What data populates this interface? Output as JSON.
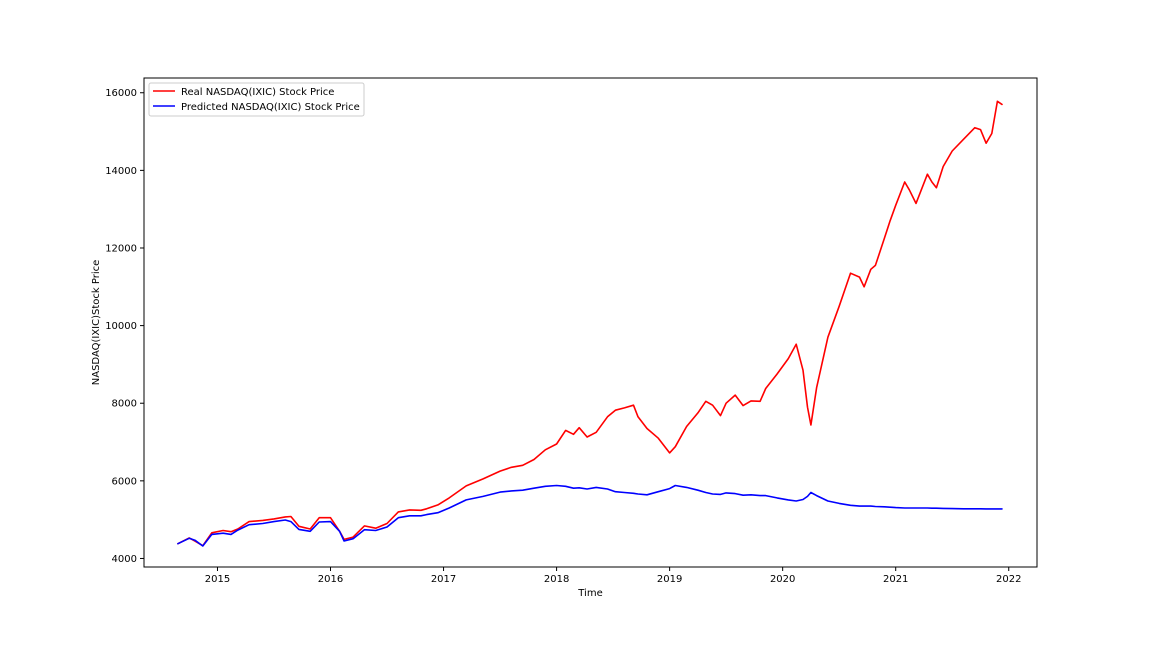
{
  "chart_data": {
    "type": "line",
    "title": "",
    "xlabel": "Time",
    "ylabel": "NASDAQ(IXIC)Stock Price",
    "xlim": [
      2014.35,
      2022.25
    ],
    "ylim": [
      3780,
      16380
    ],
    "x_ticks": [
      2015,
      2016,
      2017,
      2018,
      2019,
      2020,
      2021,
      2022
    ],
    "x_tick_labels": [
      "2015",
      "2016",
      "2017",
      "2018",
      "2019",
      "2020",
      "2021",
      "2022"
    ],
    "y_ticks": [
      4000,
      6000,
      8000,
      10000,
      12000,
      14000,
      16000
    ],
    "y_tick_labels": [
      "4000",
      "6000",
      "8000",
      "10000",
      "12000",
      "14000",
      "16000"
    ],
    "grid": false,
    "legend_position": "upper-left",
    "series": [
      {
        "name": "Real NASDAQ(IXIC) Stock Price",
        "color": "#ff0000",
        "x": [
          2014.65,
          2014.75,
          2014.8,
          2014.87,
          2014.95,
          2015.05,
          2015.12,
          2015.18,
          2015.28,
          2015.4,
          2015.5,
          2015.6,
          2015.65,
          2015.72,
          2015.82,
          2015.9,
          2016.0,
          2016.08,
          2016.12,
          2016.2,
          2016.3,
          2016.4,
          2016.5,
          2016.6,
          2016.7,
          2016.8,
          2016.85,
          2016.95,
          2017.05,
          2017.2,
          2017.35,
          2017.5,
          2017.6,
          2017.7,
          2017.8,
          2017.9,
          2018.0,
          2018.08,
          2018.15,
          2018.2,
          2018.27,
          2018.35,
          2018.45,
          2018.52,
          2018.6,
          2018.68,
          2018.72,
          2018.8,
          2018.9,
          2019.0,
          2019.05,
          2019.15,
          2019.25,
          2019.32,
          2019.38,
          2019.45,
          2019.5,
          2019.58,
          2019.65,
          2019.72,
          2019.8,
          2019.85,
          2019.95,
          2020.05,
          2020.12,
          2020.18,
          2020.22,
          2020.25,
          2020.3,
          2020.4,
          2020.5,
          2020.6,
          2020.68,
          2020.72,
          2020.78,
          2020.82,
          2020.9,
          2020.95,
          2021.0,
          2021.08,
          2021.12,
          2021.18,
          2021.22,
          2021.28,
          2021.32,
          2021.36,
          2021.42,
          2021.5,
          2021.6,
          2021.7,
          2021.75,
          2021.8,
          2021.85,
          2021.9,
          2021.94
        ],
        "y": [
          4380,
          4530,
          4450,
          4330,
          4660,
          4720,
          4690,
          4760,
          4950,
          4980,
          5020,
          5070,
          5080,
          4830,
          4760,
          5050,
          5050,
          4700,
          4490,
          4550,
          4840,
          4780,
          4900,
          5200,
          5250,
          5240,
          5280,
          5380,
          5560,
          5870,
          6050,
          6250,
          6350,
          6400,
          6550,
          6800,
          6950,
          7300,
          7200,
          7370,
          7130,
          7250,
          7650,
          7820,
          7880,
          7950,
          7650,
          7350,
          7100,
          6720,
          6880,
          7400,
          7750,
          8050,
          7950,
          7680,
          8000,
          8210,
          7940,
          8060,
          8050,
          8380,
          8750,
          9150,
          9520,
          8850,
          7900,
          7440,
          8400,
          9700,
          10500,
          11350,
          11250,
          11000,
          11450,
          11550,
          12250,
          12700,
          13100,
          13700,
          13500,
          13150,
          13450,
          13900,
          13700,
          13550,
          14100,
          14500,
          14800,
          15100,
          15050,
          14700,
          14950,
          15780,
          15700
        ]
      },
      {
        "name": "Predicted NASDAQ(IXIC) Stock Price",
        "color": "#0000ff",
        "x": [
          2014.65,
          2014.75,
          2014.8,
          2014.87,
          2014.95,
          2015.05,
          2015.12,
          2015.18,
          2015.28,
          2015.4,
          2015.5,
          2015.6,
          2015.65,
          2015.72,
          2015.82,
          2015.9,
          2016.0,
          2016.08,
          2016.12,
          2016.2,
          2016.3,
          2016.4,
          2016.5,
          2016.6,
          2016.7,
          2016.8,
          2016.85,
          2016.95,
          2017.05,
          2017.2,
          2017.35,
          2017.5,
          2017.6,
          2017.7,
          2017.8,
          2017.9,
          2018.0,
          2018.08,
          2018.15,
          2018.2,
          2018.27,
          2018.35,
          2018.45,
          2018.52,
          2018.6,
          2018.68,
          2018.72,
          2018.8,
          2018.9,
          2019.0,
          2019.05,
          2019.15,
          2019.25,
          2019.32,
          2019.38,
          2019.45,
          2019.5,
          2019.58,
          2019.65,
          2019.72,
          2019.8,
          2019.85,
          2019.95,
          2020.05,
          2020.12,
          2020.18,
          2020.22,
          2020.25,
          2020.3,
          2020.4,
          2020.5,
          2020.6,
          2020.68,
          2020.72,
          2020.78,
          2020.82,
          2020.9,
          2020.95,
          2021.0,
          2021.08,
          2021.12,
          2021.18,
          2021.22,
          2021.28,
          2021.32,
          2021.36,
          2021.42,
          2021.5,
          2021.6,
          2021.7,
          2021.75,
          2021.8,
          2021.85,
          2021.9,
          2021.94
        ],
        "y": [
          4380,
          4520,
          4470,
          4320,
          4620,
          4650,
          4620,
          4730,
          4870,
          4900,
          4950,
          4990,
          4950,
          4750,
          4700,
          4940,
          4950,
          4700,
          4450,
          4510,
          4740,
          4720,
          4810,
          5050,
          5100,
          5100,
          5130,
          5180,
          5300,
          5510,
          5600,
          5710,
          5740,
          5760,
          5810,
          5860,
          5880,
          5860,
          5810,
          5820,
          5790,
          5830,
          5790,
          5720,
          5700,
          5680,
          5660,
          5640,
          5720,
          5800,
          5880,
          5830,
          5760,
          5700,
          5660,
          5650,
          5690,
          5670,
          5630,
          5640,
          5620,
          5620,
          5560,
          5510,
          5480,
          5520,
          5600,
          5700,
          5620,
          5480,
          5420,
          5370,
          5350,
          5350,
          5350,
          5340,
          5330,
          5320,
          5310,
          5300,
          5300,
          5300,
          5300,
          5300,
          5295,
          5295,
          5290,
          5285,
          5280,
          5280,
          5280,
          5278,
          5278,
          5278,
          5278
        ]
      }
    ]
  }
}
